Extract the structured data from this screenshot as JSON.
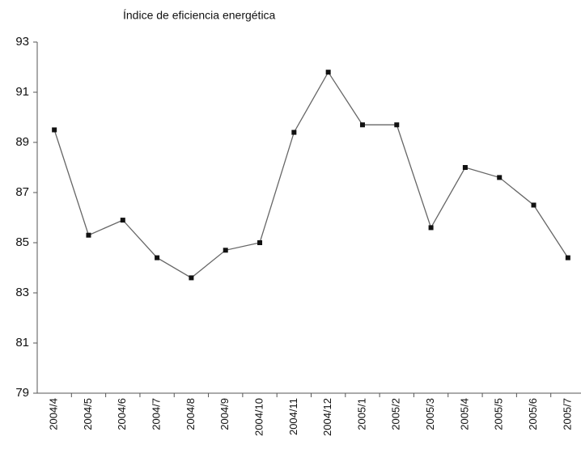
{
  "chart_data": {
    "type": "line",
    "title": "Índice de eficiencia energética",
    "categories": [
      "2004/4",
      "2004/5",
      "2004/6",
      "2004/7",
      "2004/8",
      "2004/9",
      "2004/10",
      "2004/11",
      "2004/12",
      "2005/1",
      "2005/2",
      "2005/3",
      "2005/4",
      "2005/5",
      "2005/6",
      "2005/7"
    ],
    "values": [
      89.5,
      85.3,
      85.9,
      84.4,
      83.6,
      84.7,
      85.0,
      89.4,
      91.8,
      89.7,
      89.7,
      85.6,
      88.0,
      87.6,
      86.5,
      84.4
    ],
    "color": "#666666",
    "ylim": [
      79,
      93
    ],
    "yticks": [
      79,
      81,
      83,
      85,
      87,
      89,
      91,
      93
    ],
    "grid": false
  }
}
